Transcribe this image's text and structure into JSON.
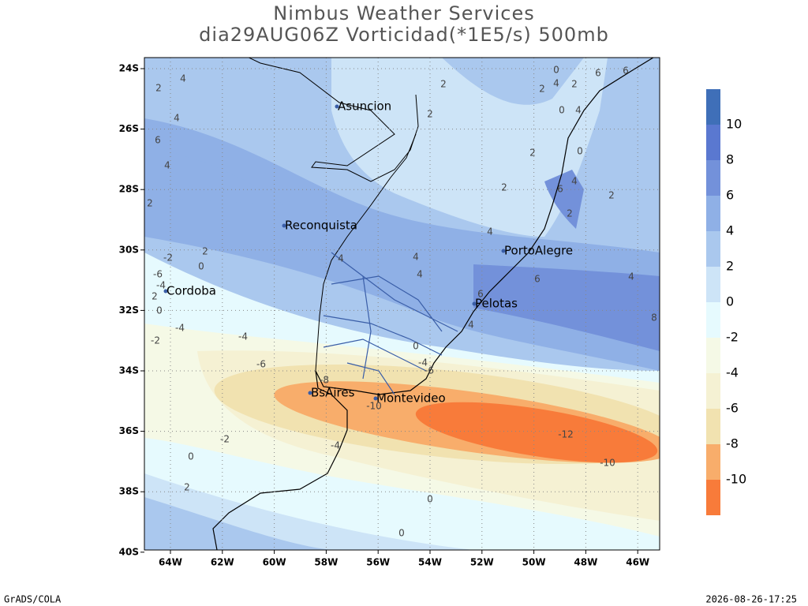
{
  "header": {
    "title": "Nimbus Weather Services",
    "subtitle": "dia29AUG06Z Vorticidad(*1E5/s) 500mb"
  },
  "map": {
    "lat_ticks": [
      "24S",
      "26S",
      "28S",
      "30S",
      "32S",
      "34S",
      "36S",
      "38S",
      "40S"
    ],
    "lon_ticks": [
      "64W",
      "62W",
      "60W",
      "58W",
      "56W",
      "54W",
      "52W",
      "50W",
      "48W",
      "46W"
    ],
    "cities": [
      "Asuncion",
      "Reconquista",
      "PortoAlegre",
      "Cordoba",
      "Pelotas",
      "BsAires",
      "Montevideo"
    ],
    "contour_labels": [
      "2",
      "2",
      "0",
      "4",
      "2",
      "2",
      "6",
      "6",
      "0",
      "4",
      "0",
      "2",
      "2",
      "6",
      "4",
      "2",
      "2",
      "4",
      "4",
      "4",
      "6",
      "4",
      "6",
      "8",
      "4",
      "4",
      "2",
      "4",
      "6",
      "4",
      "2",
      "-2",
      "2",
      "0",
      "-6",
      "-4",
      "2",
      "0",
      "-4",
      "-2",
      "-4",
      "-6",
      "0",
      "-4",
      "-6",
      "-8",
      "-10",
      "-12",
      "-10",
      "-2",
      "-4",
      "0",
      "2",
      "0",
      "0",
      "4"
    ]
  },
  "colorbar": {
    "labels": [
      "10",
      "8",
      "6",
      "4",
      "2",
      "0",
      "-2",
      "-4",
      "-6",
      "-8",
      "-10"
    ]
  },
  "footer": {
    "left": "GrADS/COLA",
    "right": "2026-08-26-17:25"
  }
}
